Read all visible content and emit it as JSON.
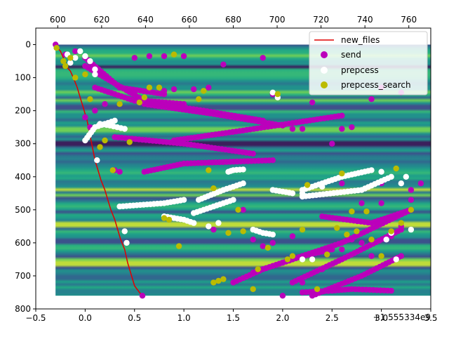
{
  "chart_data": {
    "type": "scatter",
    "title": "",
    "xlabel": "",
    "ylabel": "",
    "offset_text": "+1.555334e9",
    "xlim": [
      -0.5,
      3.5
    ],
    "ylim": [
      800,
      -50
    ],
    "top_xlim": [
      590,
      770
    ],
    "x_ticks": [
      -0.5,
      0.0,
      0.5,
      1.0,
      1.5,
      2.0,
      2.5,
      3.0,
      3.5
    ],
    "x_tick_labels": [
      "−0.5",
      "0.0",
      "0.5",
      "1.0",
      "1.5",
      "2.0",
      "2.5",
      "3.0",
      "3.5"
    ],
    "y_ticks": [
      0,
      100,
      200,
      300,
      400,
      500,
      600,
      700,
      800
    ],
    "y_tick_labels": [
      "0",
      "100",
      "200",
      "300",
      "400",
      "500",
      "600",
      "700",
      "800"
    ],
    "top_x_ticks": [
      600,
      620,
      640,
      660,
      680,
      700,
      720,
      740,
      760
    ],
    "top_x_tick_labels": [
      "600",
      "620",
      "640",
      "660",
      "680",
      "700",
      "720",
      "740",
      "760"
    ],
    "background": {
      "type": "heatmap",
      "y_range": [
        0,
        760
      ],
      "x_range": [
        -0.3,
        3.5
      ],
      "colormap": "viridis"
    },
    "legend": {
      "position": "top-right"
    },
    "series": [
      {
        "name": "new_files",
        "kind": "line",
        "color": "#e00000",
        "points": [
          [
            -0.3,
            0
          ],
          [
            -0.28,
            10
          ],
          [
            -0.25,
            20
          ],
          [
            -0.22,
            40
          ],
          [
            -0.2,
            55
          ],
          [
            -0.18,
            70
          ],
          [
            -0.15,
            80
          ],
          [
            -0.12,
            100
          ],
          [
            -0.1,
            115
          ],
          [
            -0.08,
            130
          ],
          [
            -0.06,
            150
          ],
          [
            -0.04,
            170
          ],
          [
            -0.02,
            190
          ],
          [
            0.0,
            210
          ],
          [
            0.02,
            230
          ],
          [
            0.04,
            260
          ],
          [
            0.06,
            290
          ],
          [
            0.08,
            320
          ],
          [
            0.1,
            350
          ],
          [
            0.13,
            380
          ],
          [
            0.16,
            410
          ],
          [
            0.2,
            440
          ],
          [
            0.23,
            470
          ],
          [
            0.26,
            500
          ],
          [
            0.3,
            530
          ],
          [
            0.33,
            560
          ],
          [
            0.36,
            590
          ],
          [
            0.4,
            620
          ],
          [
            0.43,
            660
          ],
          [
            0.47,
            700
          ],
          [
            0.5,
            730
          ],
          [
            0.55,
            750
          ],
          [
            0.58,
            760
          ]
        ]
      },
      {
        "name": "send",
        "kind": "scatter",
        "color": "#bb00bb",
        "segments": [
          [
            [
              0.0,
              40
            ],
            [
              0.35,
              130
            ],
            [
              0.8,
              150
            ]
          ],
          [
            [
              0.0,
              65
            ],
            [
              0.6,
              170
            ],
            [
              1.0,
              180
            ]
          ],
          [
            [
              0.1,
              130
            ],
            [
              0.5,
              170
            ],
            [
              1.2,
              200
            ],
            [
              1.8,
              230
            ]
          ],
          [
            [
              0.6,
              180
            ],
            [
              1.3,
              210
            ],
            [
              2.0,
              245
            ]
          ],
          [
            [
              0.3,
              280
            ],
            [
              1.0,
              300
            ],
            [
              1.7,
              330
            ]
          ],
          [
            [
              0.9,
              290
            ],
            [
              1.6,
              260
            ],
            [
              2.6,
              215
            ]
          ],
          [
            [
              0.6,
              385
            ],
            [
              1.0,
              360
            ],
            [
              1.9,
              350
            ]
          ],
          [
            [
              2.1,
              720
            ],
            [
              2.6,
              650
            ],
            [
              3.2,
              560
            ]
          ],
          [
            [
              2.3,
              760
            ],
            [
              2.8,
              700
            ],
            [
              3.2,
              640
            ]
          ],
          [
            [
              2.0,
              660
            ],
            [
              2.6,
              600
            ],
            [
              3.3,
              500
            ]
          ],
          [
            [
              1.7,
              690
            ],
            [
              2.2,
              640
            ],
            [
              2.5,
              620
            ]
          ],
          [
            [
              1.5,
              720
            ],
            [
              1.8,
              680
            ],
            [
              2.1,
              650
            ]
          ],
          [
            [
              2.2,
              750
            ],
            [
              2.5,
              745
            ],
            [
              2.7,
              740
            ],
            [
              3.1,
              745
            ]
          ],
          [
            [
              2.4,
              520
            ],
            [
              2.9,
              540
            ],
            [
              3.3,
              500
            ]
          ]
        ],
        "points": [
          [
            -0.3,
            0
          ],
          [
            0.58,
            760
          ],
          [
            -0.2,
            30
          ],
          [
            -0.1,
            20
          ],
          [
            0.0,
            220
          ],
          [
            0.05,
            250
          ],
          [
            0.1,
            200
          ],
          [
            0.5,
            40
          ],
          [
            0.65,
            35
          ],
          [
            0.8,
            35
          ],
          [
            1.0,
            35
          ],
          [
            1.4,
            60
          ],
          [
            1.8,
            40
          ],
          [
            2.1,
            255
          ],
          [
            2.2,
            255
          ],
          [
            2.6,
            255
          ],
          [
            2.7,
            250
          ],
          [
            1.9,
            150
          ],
          [
            2.3,
            175
          ],
          [
            2.9,
            165
          ],
          [
            3.0,
            130
          ],
          [
            3.2,
            145
          ],
          [
            3.3,
            440
          ],
          [
            3.4,
            420
          ],
          [
            2.6,
            390
          ],
          [
            3.0,
            420
          ],
          [
            2.0,
            760
          ],
          [
            2.2,
            720
          ],
          [
            2.4,
            680
          ],
          [
            2.6,
            620
          ],
          [
            2.7,
            590
          ],
          [
            2.8,
            600
          ],
          [
            2.9,
            640
          ],
          [
            3.1,
            580
          ],
          [
            3.2,
            550
          ],
          [
            3.3,
            470
          ],
          [
            1.9,
            600
          ],
          [
            2.1,
            580
          ],
          [
            1.3,
            560
          ],
          [
            1.6,
            500
          ],
          [
            1.7,
            590
          ],
          [
            1.8,
            610
          ],
          [
            2.5,
            300
          ],
          [
            2.6,
            420
          ],
          [
            2.8,
            480
          ],
          [
            3.0,
            480
          ],
          [
            0.3,
            380
          ],
          [
            0.35,
            385
          ],
          [
            0.8,
            140
          ],
          [
            0.9,
            135
          ],
          [
            1.1,
            135
          ],
          [
            1.25,
            130
          ],
          [
            0.2,
            180
          ],
          [
            0.25,
            240
          ]
        ]
      },
      {
        "name": "prepcess",
        "kind": "scatter",
        "color": "#ffffff",
        "segments": [
          [
            [
              0.0,
              290
            ],
            [
              0.1,
              250
            ],
            [
              0.3,
              230
            ]
          ],
          [
            [
              0.35,
              490
            ],
            [
              0.8,
              480
            ],
            [
              1.0,
              470
            ]
          ],
          [
            [
              0.8,
              520
            ],
            [
              1.0,
              530
            ],
            [
              1.1,
              540
            ]
          ],
          [
            [
              1.15,
              470
            ],
            [
              1.4,
              440
            ],
            [
              1.6,
              420
            ]
          ],
          [
            [
              1.1,
              510
            ],
            [
              1.3,
              490
            ],
            [
              1.5,
              470
            ]
          ],
          [
            [
              1.7,
              560
            ],
            [
              1.8,
              570
            ],
            [
              1.9,
              575
            ]
          ],
          [
            [
              1.9,
              440
            ],
            [
              2.0,
              445
            ],
            [
              2.1,
              450
            ]
          ],
          [
            [
              2.2,
              440
            ],
            [
              2.6,
              400
            ],
            [
              2.9,
              380
            ]
          ],
          [
            [
              2.2,
              460
            ],
            [
              2.8,
              440
            ],
            [
              3.1,
              400
            ]
          ],
          [
            [
              1.45,
              385
            ],
            [
              1.5,
              380
            ],
            [
              1.6,
              378
            ]
          ],
          [
            [
              0.15,
              240
            ],
            [
              0.25,
              245
            ],
            [
              0.4,
              255
            ]
          ]
        ],
        "points": [
          [
            -0.18,
            30
          ],
          [
            -0.15,
            55
          ],
          [
            -0.1,
            40
          ],
          [
            -0.05,
            20
          ],
          [
            0.0,
            35
          ],
          [
            0.05,
            50
          ],
          [
            0.1,
            75
          ],
          [
            0.1,
            90
          ],
          [
            0.12,
            350
          ],
          [
            0.4,
            565
          ],
          [
            0.42,
            600
          ],
          [
            1.25,
            550
          ],
          [
            1.35,
            540
          ],
          [
            1.9,
            145
          ],
          [
            1.95,
            160
          ],
          [
            2.2,
            650
          ],
          [
            2.3,
            650
          ],
          [
            3.0,
            385
          ],
          [
            3.05,
            590
          ],
          [
            3.1,
            570
          ],
          [
            3.15,
            650
          ],
          [
            3.2,
            420
          ],
          [
            3.25,
            400
          ],
          [
            3.3,
            560
          ],
          [
            2.2,
            450
          ],
          [
            2.4,
            430
          ]
        ]
      },
      {
        "name": "prepcess_search",
        "kind": "scatter",
        "color": "#bbbb00",
        "points": [
          [
            -0.29,
            10
          ],
          [
            -0.22,
            50
          ],
          [
            -0.2,
            65
          ],
          [
            -0.15,
            40
          ],
          [
            -0.1,
            100
          ],
          [
            0.0,
            90
          ],
          [
            0.05,
            165
          ],
          [
            0.15,
            310
          ],
          [
            0.2,
            290
          ],
          [
            0.28,
            380
          ],
          [
            0.35,
            180
          ],
          [
            0.45,
            295
          ],
          [
            0.55,
            175
          ],
          [
            0.6,
            160
          ],
          [
            0.65,
            130
          ],
          [
            0.75,
            130
          ],
          [
            0.8,
            525
          ],
          [
            0.85,
            530
          ],
          [
            0.9,
            30
          ],
          [
            0.95,
            610
          ],
          [
            1.15,
            165
          ],
          [
            1.2,
            140
          ],
          [
            1.25,
            380
          ],
          [
            1.3,
            435
          ],
          [
            1.3,
            720
          ],
          [
            1.35,
            715
          ],
          [
            1.4,
            710
          ],
          [
            1.45,
            570
          ],
          [
            1.55,
            500
          ],
          [
            1.6,
            565
          ],
          [
            1.7,
            740
          ],
          [
            1.75,
            680
          ],
          [
            1.85,
            615
          ],
          [
            1.95,
            150
          ],
          [
            2.05,
            650
          ],
          [
            2.1,
            640
          ],
          [
            2.2,
            560
          ],
          [
            2.25,
            425
          ],
          [
            2.35,
            740
          ],
          [
            2.45,
            635
          ],
          [
            2.55,
            555
          ],
          [
            2.6,
            390
          ],
          [
            2.65,
            575
          ],
          [
            2.7,
            505
          ],
          [
            2.75,
            565
          ],
          [
            2.85,
            505
          ],
          [
            2.9,
            590
          ],
          [
            3.0,
            640
          ],
          [
            3.1,
            565
          ],
          [
            3.15,
            375
          ],
          [
            3.2,
            540
          ],
          [
            3.3,
            500
          ]
        ]
      }
    ]
  }
}
